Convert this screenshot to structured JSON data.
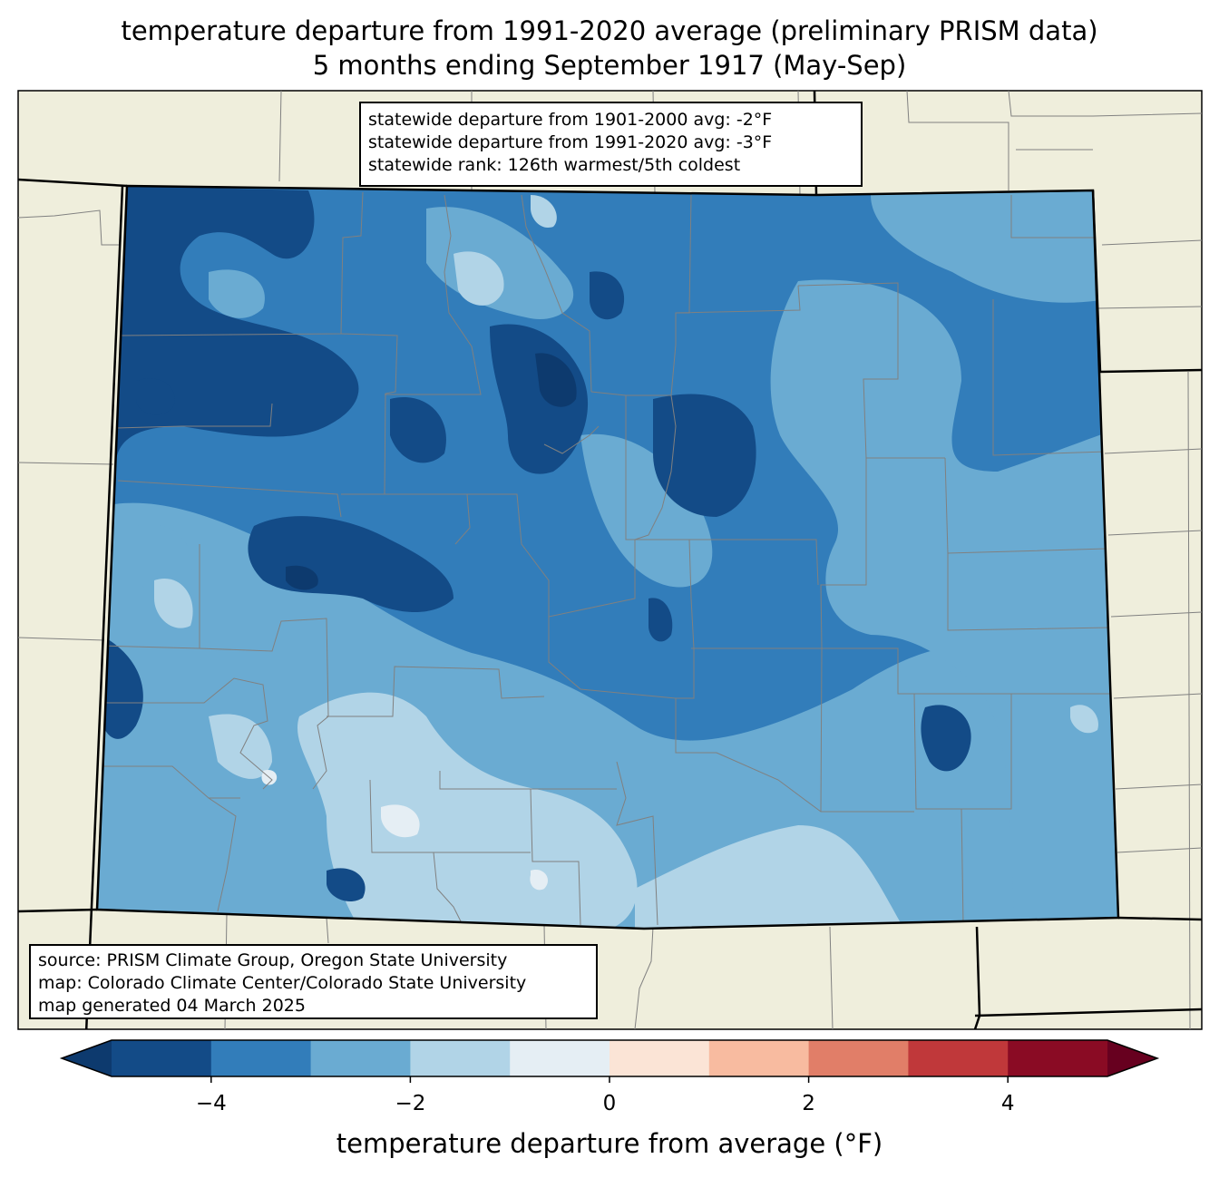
{
  "title_line1": "temperature departure from 1991-2020 average (preliminary PRISM data)",
  "title_line2": "5 months ending September 1917 (May-Sep)",
  "stats": [
    "statewide departure from 1901-2000 avg: -2°F",
    "statewide departure from 1991-2020 avg: -3°F",
    "statewide rank: 126th warmest/5th coldest"
  ],
  "source": [
    "source: PRISM Climate Group, Oregon State University",
    "map: Colorado Climate Center/Colorado State University",
    "map generated 04 March 2025"
  ],
  "colorbar": {
    "label": "temperature departure from average (°F)",
    "min": -5,
    "max": 5,
    "ticks": [
      -4,
      -2,
      0,
      2,
      4
    ],
    "tick_labels": [
      "−4",
      "−2",
      "0",
      "2",
      "4"
    ],
    "colors": [
      "#0d3a6e",
      "#134b87",
      "#327dba",
      "#6aabd2",
      "#b1d4e7",
      "#e5eef4",
      "#fbe4d6",
      "#f8bba0",
      "#e17e68",
      "#c0383a",
      "#8a0b24",
      "#67001f"
    ]
  },
  "colors": {
    "land": "#efeedc",
    "county_lines": "#808080",
    "state_border": "#000000"
  }
}
